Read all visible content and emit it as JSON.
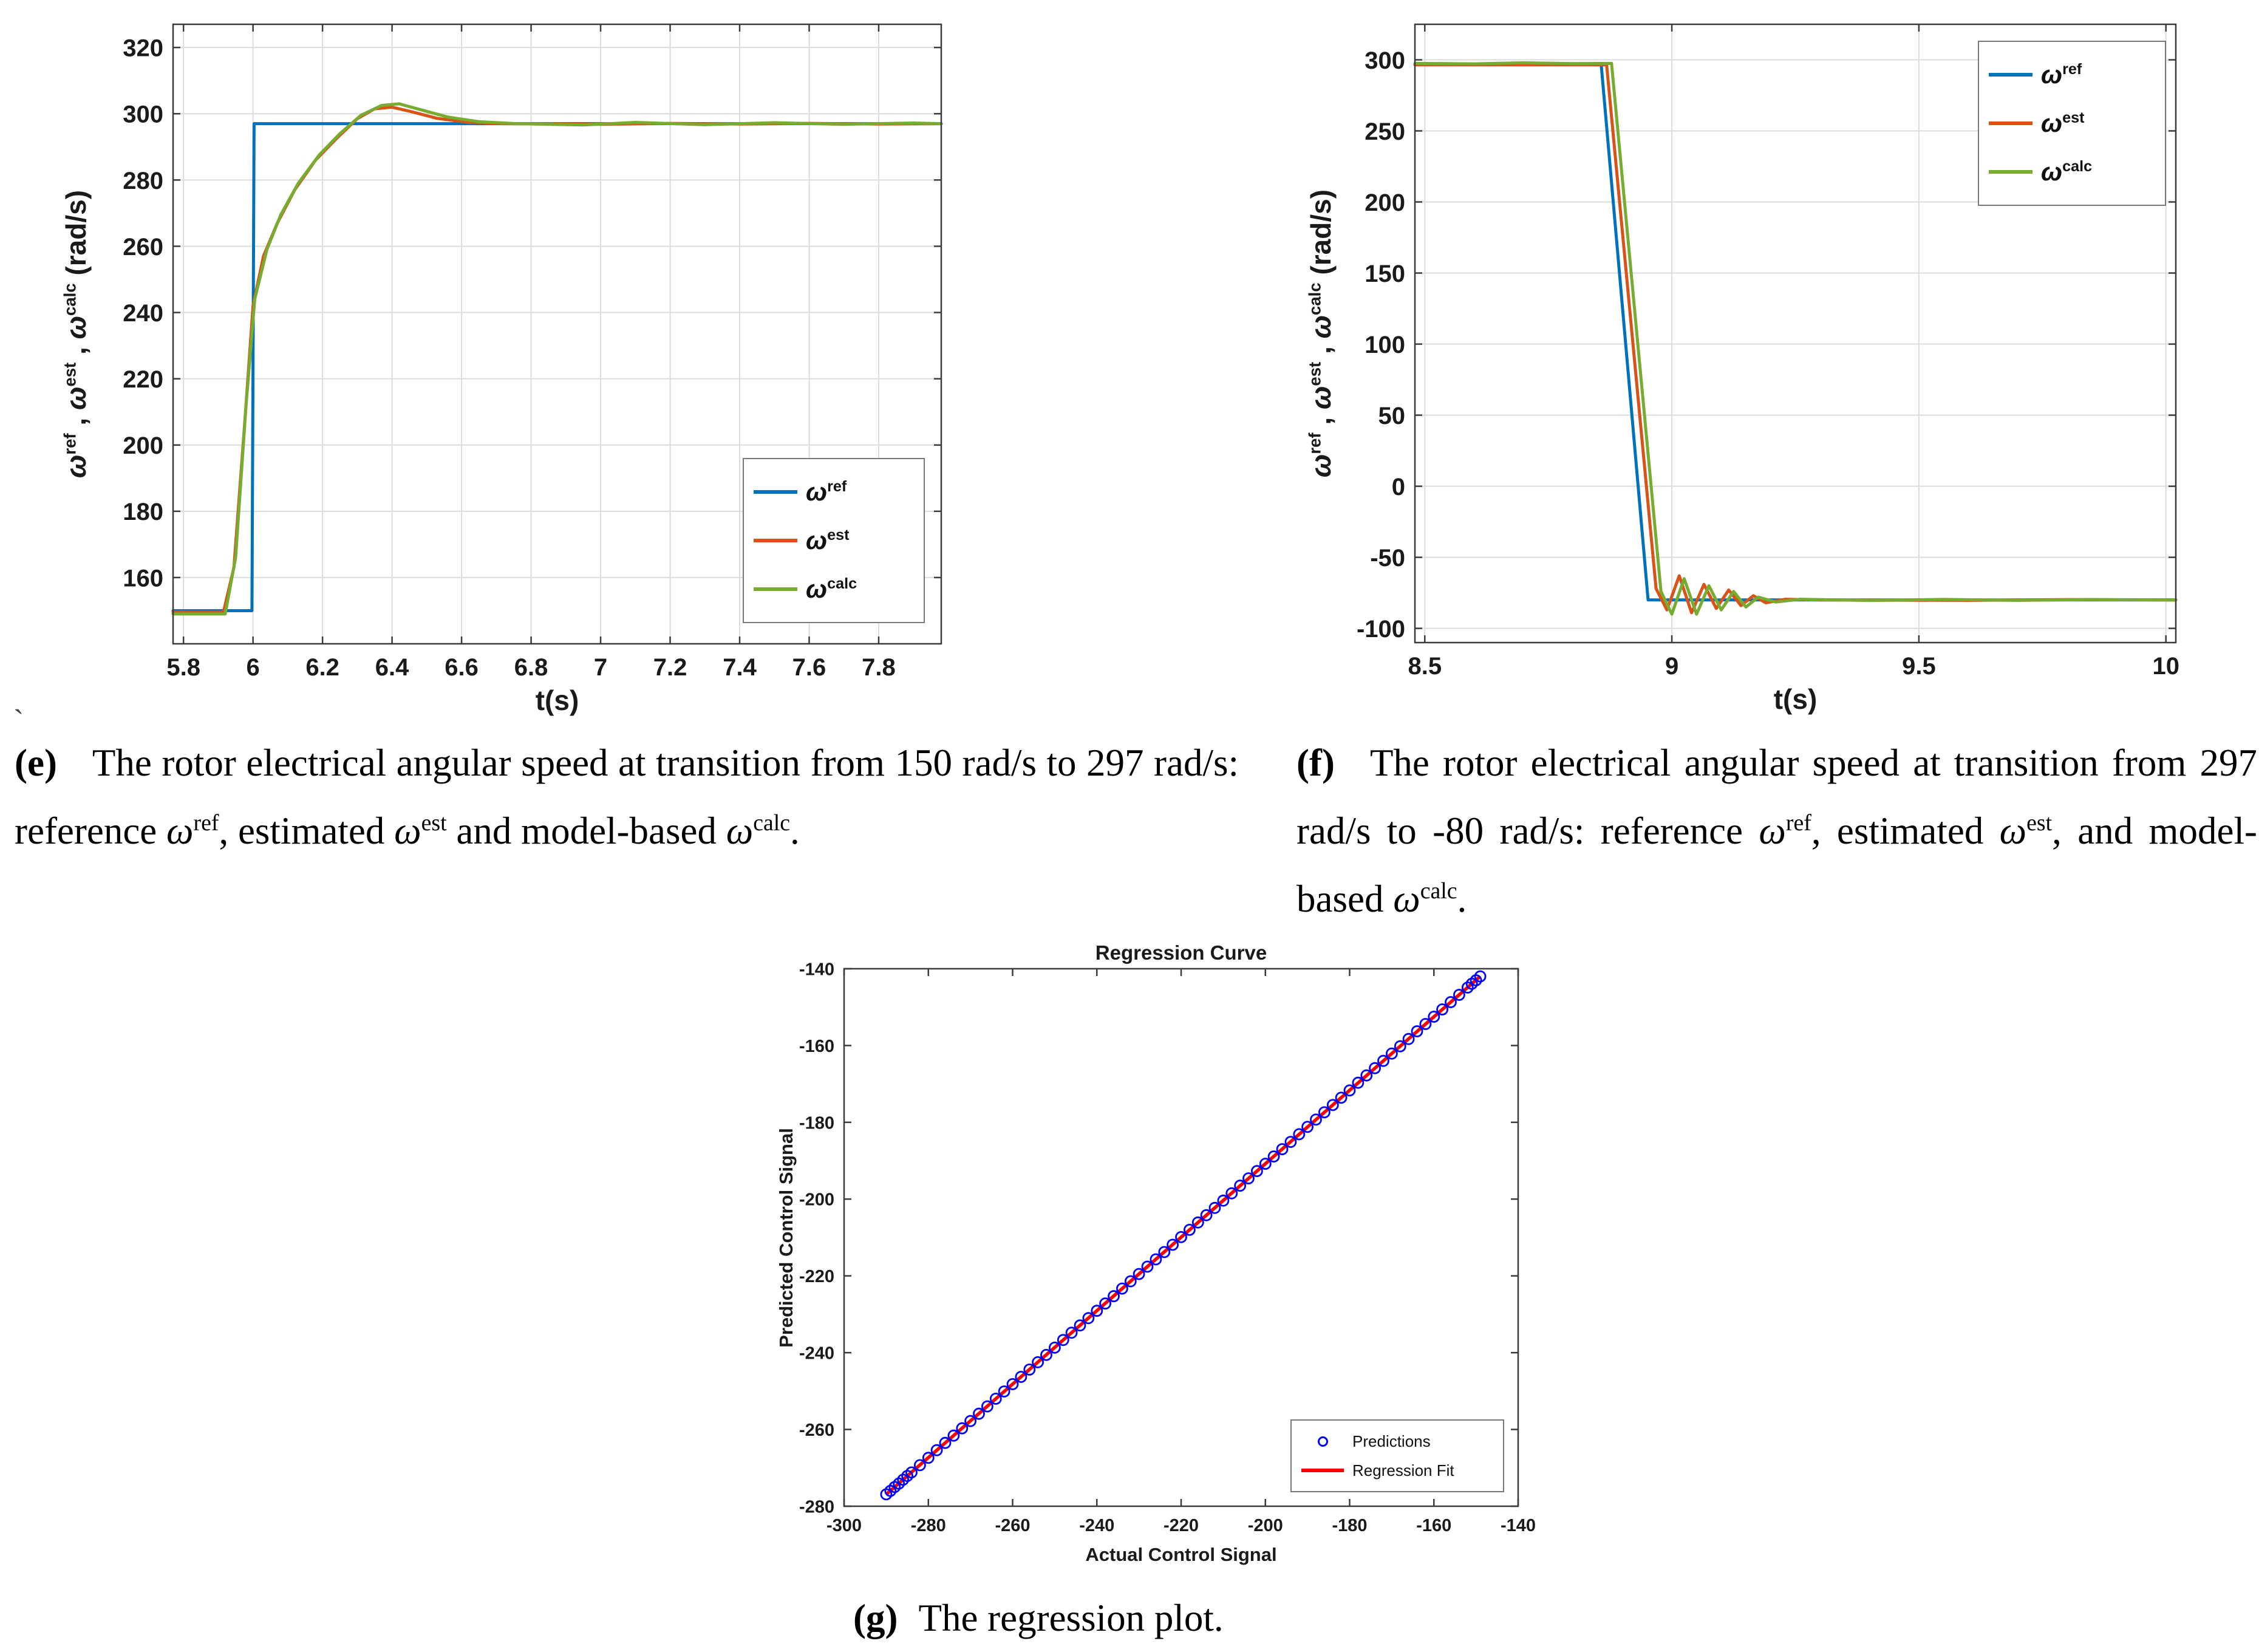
{
  "page": {
    "background": "#ffffff",
    "stray_mark": "`"
  },
  "colors": {
    "ref_blue": "#0072BD",
    "est_orange": "#D95319",
    "calc_green": "#77AC30",
    "pred_blue": "#0000FF",
    "fit_red": "#FF0000",
    "grid": "#DCDCDC",
    "axis": "#3B3B3B",
    "text": "#1A1A1A"
  },
  "captions": {
    "e": {
      "label": "(e)",
      "text": "The rotor electrical angular speed at transition from 150 rad/s to 297 rad/s: reference ω^{ref}, estimated ω^{est} and model-based ω^{calc}."
    },
    "f": {
      "label": "(f)",
      "text": "The rotor electrical angular speed at transition from 297 rad/s to -80 rad/s: reference ω^{ref}, estimated ω^{est}, and model-based ω^{calc}."
    },
    "g": {
      "label": "(g)",
      "text": "The regression plot."
    }
  },
  "chart_data": [
    {
      "id": "e",
      "type": "line",
      "title": "",
      "xlabel": "t(s)",
      "ylabel": "ω^{ref} , ω^{est} , ω^{calc} (rad/s)",
      "xlim": [
        5.77,
        7.98
      ],
      "ylim": [
        140,
        327
      ],
      "grid": true,
      "xticks": [
        [
          5.8,
          "5.8"
        ],
        [
          6,
          "6"
        ],
        [
          6.2,
          "6.2"
        ],
        [
          6.4,
          "6.4"
        ],
        [
          6.6,
          "6.6"
        ],
        [
          6.8,
          "6.8"
        ],
        [
          7,
          "7"
        ],
        [
          7.2,
          "7.2"
        ],
        [
          7.4,
          "7.4"
        ],
        [
          7.6,
          "7.6"
        ],
        [
          7.8,
          "7.8"
        ]
      ],
      "yticks": [
        [
          160,
          "160"
        ],
        [
          180,
          "180"
        ],
        [
          200,
          "200"
        ],
        [
          220,
          "220"
        ],
        [
          240,
          "240"
        ],
        [
          260,
          "260"
        ],
        [
          280,
          "280"
        ],
        [
          300,
          "300"
        ],
        [
          320,
          "320"
        ]
      ],
      "legend": {
        "position": "bottom-right-inside",
        "entries": [
          {
            "label": "ω^{ref}",
            "color": "#0072BD",
            "marker": "line"
          },
          {
            "label": "ω^{est}",
            "color": "#D95319",
            "marker": "line"
          },
          {
            "label": "ω^{calc}",
            "color": "#77AC30",
            "marker": "line"
          }
        ]
      },
      "series": [
        {
          "name": "ω^{ref}",
          "color": "#0072BD",
          "points": [
            [
              5.77,
              150
            ],
            [
              5.997,
              150
            ],
            [
              6.003,
              297
            ],
            [
              7.98,
              297
            ]
          ]
        },
        {
          "name": "ω^{est}",
          "color": "#D95319",
          "points": [
            [
              5.77,
              149.6
            ],
            [
              5.915,
              149.6
            ],
            [
              5.945,
              163
            ],
            [
              5.975,
              205
            ],
            [
              6.0,
              242
            ],
            [
              6.03,
              257
            ],
            [
              6.07,
              267
            ],
            [
              6.12,
              277
            ],
            [
              6.18,
              286
            ],
            [
              6.24,
              292.5
            ],
            [
              6.3,
              298.5
            ],
            [
              6.35,
              301.5
            ],
            [
              6.4,
              302
            ],
            [
              6.46,
              300.5
            ],
            [
              6.53,
              298.6
            ],
            [
              6.62,
              297.4
            ],
            [
              6.72,
              297
            ],
            [
              7.0,
              296.8
            ],
            [
              7.2,
              297.1
            ],
            [
              7.4,
              296.9
            ],
            [
              7.6,
              297.1
            ],
            [
              7.8,
              296.9
            ],
            [
              7.98,
              297
            ]
          ]
        },
        {
          "name": "ω^{calc}",
          "color": "#77AC30",
          "points": [
            [
              5.77,
              149
            ],
            [
              5.92,
              149
            ],
            [
              5.95,
              166
            ],
            [
              5.98,
              212
            ],
            [
              6.005,
              244
            ],
            [
              6.04,
              259
            ],
            [
              6.08,
              269.5
            ],
            [
              6.13,
              279
            ],
            [
              6.19,
              287.5
            ],
            [
              6.25,
              294
            ],
            [
              6.31,
              299.5
            ],
            [
              6.37,
              302.5
            ],
            [
              6.42,
              303
            ],
            [
              6.49,
              301
            ],
            [
              6.56,
              299
            ],
            [
              6.65,
              297.6
            ],
            [
              6.76,
              297
            ],
            [
              6.95,
              296.6
            ],
            [
              7.1,
              297.4
            ],
            [
              7.3,
              296.7
            ],
            [
              7.5,
              297.3
            ],
            [
              7.7,
              296.8
            ],
            [
              7.9,
              297.2
            ],
            [
              7.98,
              297
            ]
          ]
        }
      ]
    },
    {
      "id": "f",
      "type": "line",
      "title": "",
      "xlabel": "t(s)",
      "ylabel": "ω^{ref} , ω^{est} , ω^{calc} (rad/s)",
      "xlim": [
        8.48,
        10.02
      ],
      "ylim": [
        -110,
        325
      ],
      "grid": true,
      "xticks": [
        [
          8.5,
          "8.5"
        ],
        [
          9,
          "9"
        ],
        [
          9.5,
          "9.5"
        ],
        [
          10,
          "10"
        ]
      ],
      "yticks": [
        [
          -100,
          "-100"
        ],
        [
          -50,
          "-50"
        ],
        [
          0,
          "0"
        ],
        [
          50,
          "50"
        ],
        [
          100,
          "100"
        ],
        [
          150,
          "150"
        ],
        [
          200,
          "200"
        ],
        [
          250,
          "250"
        ],
        [
          300,
          "300"
        ]
      ],
      "legend": {
        "position": "top-right-inside",
        "entries": [
          {
            "label": "ω^{ref}",
            "color": "#0072BD",
            "marker": "line"
          },
          {
            "label": "ω^{est}",
            "color": "#D95319",
            "marker": "line"
          },
          {
            "label": "ω^{calc}",
            "color": "#77AC30",
            "marker": "line"
          }
        ]
      },
      "series": [
        {
          "name": "ω^{ref}",
          "color": "#0072BD",
          "points": [
            [
              8.48,
              297
            ],
            [
              8.857,
              297
            ],
            [
              8.952,
              -80
            ],
            [
              10.02,
              -80
            ]
          ]
        },
        {
          "name": "ω^{est}",
          "color": "#D95319",
          "points": [
            [
              8.48,
              296.5
            ],
            [
              8.868,
              296.5
            ],
            [
              8.968,
              -72
            ],
            [
              8.99,
              -87
            ],
            [
              9.015,
              -63
            ],
            [
              9.04,
              -89
            ],
            [
              9.065,
              -69
            ],
            [
              9.09,
              -86
            ],
            [
              9.115,
              -73
            ],
            [
              9.14,
              -84
            ],
            [
              9.165,
              -77
            ],
            [
              9.19,
              -82
            ],
            [
              9.23,
              -79.5
            ],
            [
              9.3,
              -80
            ],
            [
              9.6,
              -80.3
            ],
            [
              9.8,
              -79.7
            ],
            [
              10.02,
              -80
            ]
          ]
        },
        {
          "name": "ω^{calc}",
          "color": "#77AC30",
          "points": [
            [
              8.48,
              297.5
            ],
            [
              8.6,
              297.2
            ],
            [
              8.7,
              297.9
            ],
            [
              8.8,
              297.3
            ],
            [
              8.878,
              297.5
            ],
            [
              8.978,
              -74
            ],
            [
              9.0,
              -90
            ],
            [
              9.025,
              -65
            ],
            [
              9.05,
              -90
            ],
            [
              9.075,
              -70
            ],
            [
              9.1,
              -87
            ],
            [
              9.125,
              -74
            ],
            [
              9.15,
              -85
            ],
            [
              9.175,
              -78
            ],
            [
              9.21,
              -81.5
            ],
            [
              9.26,
              -79.5
            ],
            [
              9.4,
              -80.4
            ],
            [
              9.55,
              -79.6
            ],
            [
              9.7,
              -80.3
            ],
            [
              9.85,
              -79.7
            ],
            [
              10.02,
              -80
            ]
          ]
        }
      ]
    },
    {
      "id": "g",
      "type": "scatter",
      "title": "Regression Curve",
      "xlabel": "Actual Control Signal",
      "ylabel": "Predicted Control Signal",
      "xlim": [
        -300,
        -140
      ],
      "ylim": [
        -280,
        -140
      ],
      "grid": false,
      "xticks": [
        [
          -300,
          "-300"
        ],
        [
          -280,
          "-280"
        ],
        [
          -260,
          "-260"
        ],
        [
          -240,
          "-240"
        ],
        [
          -220,
          "-220"
        ],
        [
          -200,
          "-200"
        ],
        [
          -180,
          "-180"
        ],
        [
          -160,
          "-160"
        ],
        [
          -140,
          "-140"
        ]
      ],
      "yticks": [
        [
          -280,
          "-280"
        ],
        [
          -260,
          "-260"
        ],
        [
          -240,
          "-240"
        ],
        [
          -220,
          "-220"
        ],
        [
          -200,
          "-200"
        ],
        [
          -180,
          "-180"
        ],
        [
          -160,
          "-160"
        ],
        [
          -140,
          "-140"
        ]
      ],
      "legend": {
        "position": "bottom-right-inside",
        "entries": [
          {
            "label": "Predictions",
            "color": "#0000FF",
            "marker": "circle"
          },
          {
            "label": "Regression Fit",
            "color": "#FF0000",
            "marker": "line"
          }
        ]
      },
      "fit_line": {
        "name": "Regression Fit",
        "color": "#FF0000",
        "slope": 0.957,
        "intercept": 0.6,
        "points": [
          [
            -290,
            -276.9
          ],
          [
            -149,
            -142
          ]
        ]
      },
      "scatter": {
        "name": "Predictions",
        "color": "#0000FF",
        "points": [
          [
            -290,
            -276.9
          ],
          [
            -289,
            -276
          ],
          [
            -288,
            -275
          ],
          [
            -287,
            -274.1
          ],
          [
            -286,
            -273.1
          ],
          [
            -285,
            -272.1
          ],
          [
            -284,
            -271.2
          ],
          [
            -282,
            -269.3
          ],
          [
            -280,
            -267.4
          ],
          [
            -278,
            -265.4
          ],
          [
            -276,
            -263.5
          ],
          [
            -274,
            -261.6
          ],
          [
            -272,
            -259.7
          ],
          [
            -270,
            -257.8
          ],
          [
            -268,
            -255.9
          ],
          [
            -266,
            -254
          ],
          [
            -264,
            -252
          ],
          [
            -262,
            -250.1
          ],
          [
            -260,
            -248.2
          ],
          [
            -258,
            -246.3
          ],
          [
            -256,
            -244.4
          ],
          [
            -254,
            -242.5
          ],
          [
            -252,
            -240.6
          ],
          [
            -250,
            -238.7
          ],
          [
            -248,
            -236.7
          ],
          [
            -246,
            -234.8
          ],
          [
            -244,
            -232.9
          ],
          [
            -242,
            -231
          ],
          [
            -240,
            -229.1
          ],
          [
            -238,
            -227.2
          ],
          [
            -236,
            -225.3
          ],
          [
            -234,
            -223.3
          ],
          [
            -232,
            -221.4
          ],
          [
            -230,
            -219.5
          ],
          [
            -228,
            -217.6
          ],
          [
            -226,
            -215.7
          ],
          [
            -224,
            -213.8
          ],
          [
            -222,
            -211.9
          ],
          [
            -220,
            -209.9
          ],
          [
            -218,
            -208
          ],
          [
            -216,
            -206.1
          ],
          [
            -214,
            -204.2
          ],
          [
            -212,
            -202.3
          ],
          [
            -210,
            -200.4
          ],
          [
            -208,
            -198.5
          ],
          [
            -206,
            -196.5
          ],
          [
            -204,
            -194.6
          ],
          [
            -202,
            -192.7
          ],
          [
            -200,
            -190.8
          ],
          [
            -198,
            -188.9
          ],
          [
            -196,
            -187
          ],
          [
            -194,
            -185.1
          ],
          [
            -192,
            -183.1
          ],
          [
            -190,
            -181.2
          ],
          [
            -188,
            -179.3
          ],
          [
            -186,
            -177.4
          ],
          [
            -184,
            -175.5
          ],
          [
            -182,
            -173.6
          ],
          [
            -180,
            -171.7
          ],
          [
            -178,
            -169.7
          ],
          [
            -176,
            -167.8
          ],
          [
            -174,
            -165.9
          ],
          [
            -172,
            -164
          ],
          [
            -170,
            -162.1
          ],
          [
            -168,
            -160.2
          ],
          [
            -166,
            -158.3
          ],
          [
            -164,
            -156.3
          ],
          [
            -162,
            -154.4
          ],
          [
            -160,
            -152.5
          ],
          [
            -158,
            -150.6
          ],
          [
            -156,
            -148.7
          ],
          [
            -154,
            -146.8
          ],
          [
            -152,
            -144.9
          ],
          [
            -151,
            -143.9
          ],
          [
            -150,
            -143
          ],
          [
            -149,
            -142
          ]
        ]
      }
    }
  ]
}
